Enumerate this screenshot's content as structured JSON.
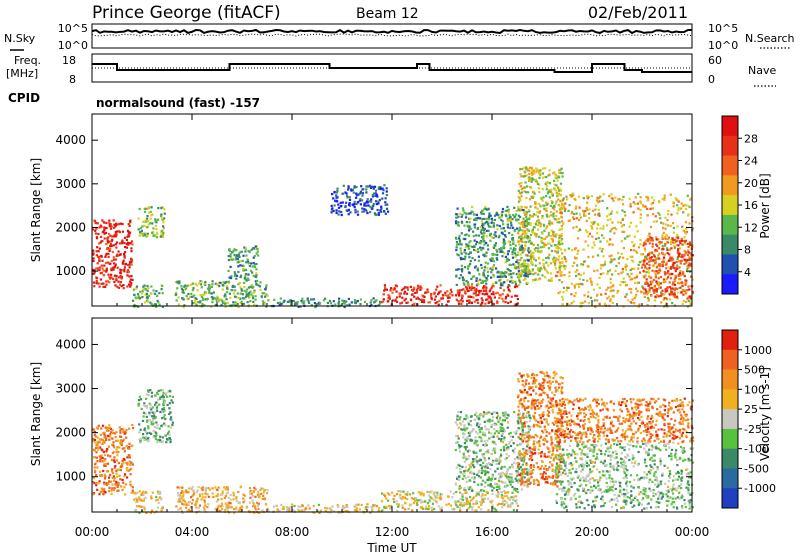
{
  "header": {
    "station": "Prince George (fitACF)",
    "beam": "Beam 12",
    "date": "02/Feb/2011"
  },
  "noise_panel": {
    "left_label": "N.Sky",
    "right_label": "N.Search",
    "left_ticks": [
      "10^5",
      "10^0"
    ],
    "right_ticks": [
      "10^5",
      "10^0"
    ]
  },
  "freq_panel": {
    "left_label_line1": "Freq.",
    "left_label_line2": "[MHz]",
    "right_label": "Nave",
    "left_ticks": [
      "18",
      "8"
    ],
    "right_ticks": [
      "60",
      "0"
    ]
  },
  "cpid": {
    "label": "CPID",
    "text": "normalsound (fast) -157"
  },
  "x_axis": {
    "ticks": [
      "00:00",
      "04:00",
      "08:00",
      "12:00",
      "16:00",
      "20:00",
      "00:00"
    ],
    "label": "Time UT"
  },
  "chart_data": [
    {
      "type": "heatmap",
      "name": "power",
      "ylabel": "Slant Range [km]",
      "yticks": [
        "1000",
        "2000",
        "3000",
        "4000"
      ],
      "ylim": [
        200,
        4600
      ],
      "xlim_hours": [
        0,
        24
      ],
      "colorbar": {
        "label": "Power [dB]",
        "tick_labels": [
          "4",
          "8",
          "12",
          "16",
          "20",
          "24",
          "28"
        ],
        "colors": [
          "#1a1aff",
          "#2050b0",
          "#3a8a6a",
          "#5ab84a",
          "#d8d020",
          "#f09a20",
          "#f06020",
          "#e83018",
          "#e01010"
        ]
      },
      "echo_regions": [
        {
          "t0": 0.0,
          "t1": 1.6,
          "r0": 600,
          "r1": 2200,
          "level": 0.95
        },
        {
          "t0": 1.6,
          "t1": 2.8,
          "r0": 200,
          "r1": 700,
          "level": 0.35
        },
        {
          "t0": 1.8,
          "t1": 2.9,
          "r0": 1800,
          "r1": 2500,
          "level": 0.4
        },
        {
          "t0": 3.3,
          "t1": 7.0,
          "r0": 200,
          "r1": 800,
          "level": 0.35
        },
        {
          "t0": 5.4,
          "t1": 6.6,
          "r0": 800,
          "r1": 1600,
          "level": 0.3
        },
        {
          "t0": 7.0,
          "t1": 11.5,
          "r0": 200,
          "r1": 400,
          "level": 0.25
        },
        {
          "t0": 9.5,
          "t1": 11.8,
          "r0": 2300,
          "r1": 3000,
          "level": 0.1
        },
        {
          "t0": 11.5,
          "t1": 17.0,
          "r0": 250,
          "r1": 700,
          "level": 0.9
        },
        {
          "t0": 14.5,
          "t1": 17.5,
          "r0": 700,
          "r1": 2500,
          "level": 0.3
        },
        {
          "t0": 17.0,
          "t1": 18.8,
          "r0": 800,
          "r1": 3400,
          "level": 0.5
        },
        {
          "t0": 18.5,
          "t1": 24.0,
          "r0": 200,
          "r1": 2800,
          "level": 0.55
        },
        {
          "t0": 22.0,
          "t1": 24.0,
          "r0": 400,
          "r1": 1800,
          "level": 0.8
        }
      ]
    },
    {
      "type": "heatmap",
      "name": "velocity",
      "ylabel": "Slant Range [km]",
      "yticks": [
        "1000",
        "2000",
        "3000",
        "4000"
      ],
      "ylim": [
        200,
        4600
      ],
      "xlim_hours": [
        0,
        24
      ],
      "colorbar": {
        "label": "Velocity [m s-1]",
        "tick_labels": [
          "1000",
          "500",
          "100",
          "25",
          "-25",
          "-100",
          "-500",
          "-1000"
        ],
        "colors": [
          "#2040c0",
          "#2a6aa0",
          "#3a8a6a",
          "#5ac040",
          "#c8c8c0",
          "#f0b020",
          "#f09020",
          "#f06020",
          "#e02010"
        ]
      },
      "echo_regions": [
        {
          "t0": 0.0,
          "t1": 1.6,
          "r0": 600,
          "r1": 2200,
          "level": 0.8
        },
        {
          "t0": 1.6,
          "t1": 2.8,
          "r0": 200,
          "r1": 700,
          "level": 0.6
        },
        {
          "t0": 1.8,
          "t1": 3.2,
          "r0": 1800,
          "r1": 3000,
          "level": 0.35
        },
        {
          "t0": 3.3,
          "t1": 7.0,
          "r0": 200,
          "r1": 800,
          "level": 0.65
        },
        {
          "t0": 7.0,
          "t1": 11.5,
          "r0": 200,
          "r1": 400,
          "level": 0.6
        },
        {
          "t0": 11.5,
          "t1": 17.0,
          "r0": 250,
          "r1": 700,
          "level": 0.55
        },
        {
          "t0": 14.5,
          "t1": 17.5,
          "r0": 700,
          "r1": 2500,
          "level": 0.4
        },
        {
          "t0": 17.0,
          "t1": 18.8,
          "r0": 800,
          "r1": 3400,
          "level": 0.8
        },
        {
          "t0": 18.5,
          "t1": 24.0,
          "r0": 1800,
          "r1": 2800,
          "level": 0.8
        },
        {
          "t0": 18.5,
          "t1": 24.0,
          "r0": 300,
          "r1": 1800,
          "level": 0.4
        }
      ]
    }
  ]
}
